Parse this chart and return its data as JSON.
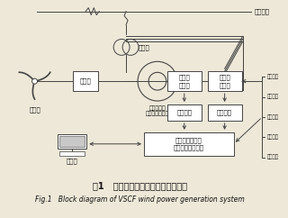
{
  "title_cn": "图1   变速恒频风力发电系统原理框图",
  "title_en": "Fig.1   Block diagram of VSCF wind power generation system",
  "bg_color": "#ede8d8",
  "box_color": "#ffffff",
  "box_edge": "#444444",
  "line_color": "#444444",
  "text_color": "#111111",
  "sensor_labels": [
    "定子电压",
    "定子电流",
    "转子电压",
    "转子电流",
    "电机转速"
  ],
  "power_line_label": "电力系统",
  "transformer_label": "变压器",
  "motor_label": "双馈式变速\n恒频风力发电机",
  "wind_label": "风力机"
}
